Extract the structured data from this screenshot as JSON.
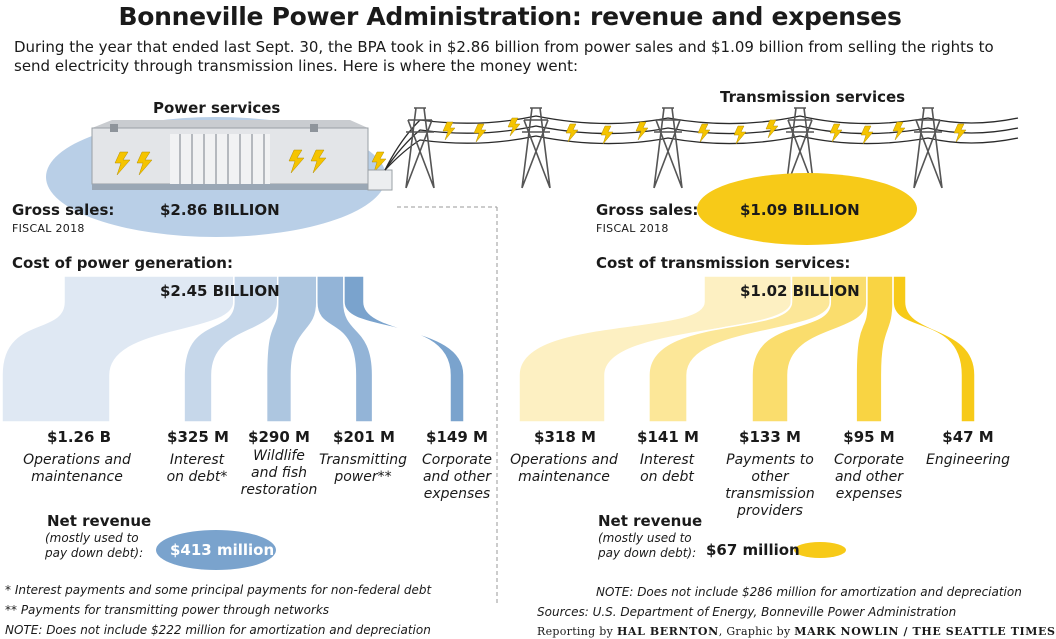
{
  "title": "Bonneville Power Administration: revenue and expenses",
  "subtitle": "During the year that ended last Sept. 30, the BPA took in $2.86 billion from power sales and $1.09 billion from selling the rights to send electricity through transmission lines. Here is where the money went:",
  "power": {
    "heading": "Power services",
    "gross_label": "Gross sales:",
    "fiscal_label": "FISCAL 2018",
    "gross_value": "$2.86 BILLION",
    "cost_heading": "Cost of power generation:",
    "cost_total": "$2.45 BILLION",
    "items": [
      {
        "amount": "$1.26 B",
        "label": "Operations and maintenance",
        "value_m": 1260
      },
      {
        "amount": "$325 M",
        "label": "Interest on debt*",
        "value_m": 325
      },
      {
        "amount": "$290 M",
        "label": "Wildlife and fish restoration",
        "value_m": 290
      },
      {
        "amount": "$201 M",
        "label": "Transmitting power**",
        "value_m": 201
      },
      {
        "amount": "$149 M",
        "label": "Corporate and other expenses",
        "value_m": 149
      }
    ],
    "net_label": "Net revenue",
    "net_sub": "(mostly used to pay down debt):",
    "net_value": "$413 million",
    "color_light": "#dfe8f3",
    "color_dark": "#7aa3cd"
  },
  "transmission": {
    "heading": "Transmission services",
    "gross_label": "Gross sales:",
    "fiscal_label": "FISCAL 2018",
    "gross_value": "$1.09 BILLION",
    "cost_heading": "Cost of transmission services:",
    "cost_total": "$1.02 BILLION",
    "items": [
      {
        "amount": "$318 M",
        "label": "Operations and maintenance",
        "value_m": 318
      },
      {
        "amount": "$141 M",
        "label": "Interest on debt",
        "value_m": 141
      },
      {
        "amount": "$133 M",
        "label": "Payments to other transmission providers",
        "value_m": 133
      },
      {
        "amount": "$95 M",
        "label": "Corporate and other expenses",
        "value_m": 95
      },
      {
        "amount": "$47 M",
        "label": "Engineering",
        "value_m": 47
      }
    ],
    "net_label": "Net revenue",
    "net_sub": "(mostly used to pay down debt):",
    "net_value": "$67 million",
    "color_light": "#fdf0c2",
    "color_dark": "#f7ca18"
  },
  "notes_left": [
    "* Interest payments and some principal payments for non-federal debt",
    "** Payments for transmitting power through networks",
    "NOTE: Does not include $222 million for amortization and depreciation"
  ],
  "notes_right": [
    "NOTE: Does not include $286 million for amortization and depreciation",
    "Sources: U.S. Department of Energy, Bonneville Power Administration"
  ],
  "credit": {
    "reporting": "Reporting by",
    "reporter": "HAL BERNTON",
    "graphic": ", Graphic by",
    "artist": "MARK NOWLIN / THE SEATTLE TIMES"
  }
}
